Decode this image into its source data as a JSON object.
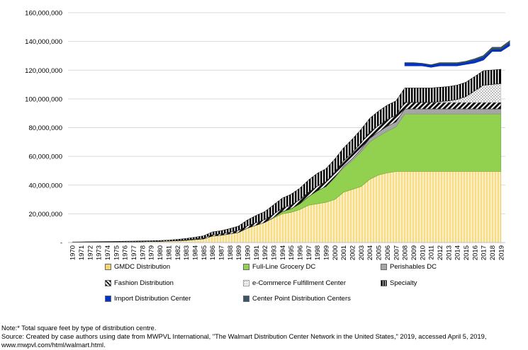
{
  "chart_data": {
    "type": "area",
    "stacked": true,
    "title": "",
    "xlabel": "",
    "ylabel": "",
    "ylim": [
      0,
      160000000
    ],
    "yticks": [
      0,
      20000000,
      40000000,
      60000000,
      80000000,
      100000000,
      120000000,
      140000000,
      160000000
    ],
    "ytick_labels": [
      "-",
      "20,000,000",
      "40,000,000",
      "60,000,000",
      "80,000,000",
      "100,000,000",
      "120,000,000",
      "140,000,000",
      "160,000,000"
    ],
    "grid": "horizontal",
    "legend_position": "bottom",
    "categories": [
      "1970",
      "1971",
      "1972",
      "1973",
      "1974",
      "1975",
      "1976",
      "1977",
      "1978",
      "1979",
      "1980",
      "1981",
      "1982",
      "1983",
      "1984",
      "1985",
      "1986",
      "1987",
      "1988",
      "1989",
      "1990",
      "1991",
      "1992",
      "1993",
      "1994",
      "1995",
      "1996",
      "1997",
      "1998",
      "1999",
      "2000",
      "2001",
      "2002",
      "2003",
      "2004",
      "2005",
      "2006",
      "2007",
      "2008",
      "2009",
      "2010",
      "2011",
      "2012",
      "2013",
      "2014",
      "2015",
      "2016",
      "2017",
      "2018",
      "2019"
    ],
    "series": [
      {
        "name": "GMDC Distribution",
        "color": "#f2d675",
        "values": [
          200000,
          250000,
          300000,
          350000,
          400000,
          450000,
          500000,
          550000,
          600000,
          700000,
          800000,
          1000000,
          1200000,
          1500000,
          2000000,
          2500000,
          4500000,
          5000000,
          6000000,
          7000000,
          10000000,
          12000000,
          14000000,
          17000000,
          20000000,
          21000000,
          23000000,
          26000000,
          27000000,
          28000000,
          30000000,
          35000000,
          37000000,
          39000000,
          44000000,
          47000000,
          48500000,
          49500000,
          49500000,
          49500000,
          49500000,
          49500000,
          49500000,
          49500000,
          49500000,
          49500000,
          49500000,
          49500000,
          49500000,
          49500000
        ]
      },
      {
        "name": "Full-Line Grocery DC",
        "color": "#92d050",
        "values": [
          0,
          0,
          0,
          0,
          0,
          0,
          0,
          0,
          0,
          0,
          0,
          0,
          0,
          0,
          0,
          0,
          0,
          0,
          0,
          0,
          0,
          0,
          0,
          500000,
          1500000,
          2500000,
          4000000,
          6000000,
          9000000,
          11000000,
          15000000,
          17000000,
          20000000,
          24000000,
          26000000,
          27000000,
          29000000,
          31000000,
          40000000,
          40000000,
          40000000,
          40000000,
          40000000,
          40000000,
          40000000,
          40000000,
          40000000,
          40000000,
          40000000,
          40000000
        ]
      },
      {
        "name": "Perishables DC",
        "color": "#a6a6a6",
        "values": [
          0,
          0,
          0,
          0,
          0,
          0,
          0,
          0,
          0,
          0,
          0,
          0,
          0,
          0,
          0,
          0,
          0,
          0,
          0,
          0,
          0,
          0,
          0,
          0,
          0,
          0,
          0,
          0,
          0,
          0,
          500000,
          1000000,
          1500000,
          2000000,
          2500000,
          3000000,
          3500000,
          3500000,
          3500000,
          3500000,
          3500000,
          3500000,
          3500000,
          3500000,
          3500000,
          3500000,
          3500000,
          3500000,
          3500000,
          3500000
        ]
      },
      {
        "name": "Fashion Distribution",
        "color": "#1f1f1f",
        "values": [
          0,
          0,
          0,
          0,
          0,
          0,
          0,
          0,
          0,
          0,
          0,
          0,
          200000,
          300000,
          500000,
          700000,
          900000,
          1000000,
          1200000,
          1400000,
          1600000,
          1800000,
          2000000,
          2200000,
          2400000,
          2600000,
          2800000,
          3000000,
          3200000,
          3400000,
          3600000,
          3800000,
          4000000,
          4200000,
          4400000,
          4500000,
          4600000,
          4600000,
          4600000,
          4600000,
          4600000,
          4600000,
          4600000,
          4600000,
          4600000,
          4600000,
          4600000,
          4600000,
          4600000,
          4600000
        ]
      },
      {
        "name": "e-Commerce Fulfillment Center",
        "color": "#d9d9d9",
        "values": [
          0,
          0,
          0,
          0,
          0,
          0,
          0,
          0,
          0,
          0,
          0,
          0,
          0,
          0,
          0,
          0,
          0,
          0,
          0,
          0,
          0,
          0,
          0,
          0,
          0,
          0,
          0,
          0,
          0,
          0,
          0,
          0,
          0,
          0,
          0,
          0,
          0,
          0,
          0,
          0,
          0,
          0,
          500000,
          1000000,
          2000000,
          4000000,
          8000000,
          12000000,
          12500000,
          13000000
        ]
      },
      {
        "name": "Specialty",
        "color": "#000000",
        "values": [
          200000,
          250000,
          300000,
          300000,
          300000,
          350000,
          400000,
          450000,
          500000,
          550000,
          600000,
          700000,
          800000,
          1000000,
          1200000,
          1500000,
          2000000,
          2200000,
          2500000,
          3000000,
          4000000,
          5000000,
          5500000,
          6500000,
          7000000,
          7500000,
          8000000,
          8500000,
          9000000,
          9000000,
          9000000,
          9000000,
          9500000,
          9500000,
          9500000,
          10000000,
          10000000,
          10000000,
          10000000,
          10000000,
          10000000,
          10000000,
          10000000,
          10000000,
          10000000,
          10000000,
          10000000,
          10000000,
          10000000,
          10000000
        ]
      },
      {
        "name": "Import Distribution Center",
        "color": "#0033cc",
        "values": [
          0,
          0,
          0,
          0,
          0,
          0,
          0,
          0,
          0,
          0,
          0,
          0,
          0,
          0,
          0,
          0,
          0,
          0,
          0,
          0,
          0,
          0,
          0,
          0,
          0,
          0,
          0,
          0,
          0,
          0,
          0,
          0,
          0,
          0,
          0,
          0,
          0,
          0,
          0,
          0,
          0,
          0,
          0,
          0,
          0,
          0,
          0,
          0,
          0,
          0
        ],
        "separate_band": {
          "start_index": 38,
          "base": [
            123000000,
            123000000,
            123000000,
            122000000,
            123000000,
            123000000,
            123000000,
            124000000,
            125000000,
            127000000,
            133000000,
            133000000,
            137000000
          ],
          "height": [
            2000000,
            2000000,
            1500000,
            1500000,
            1500000,
            1500000,
            1500000,
            1500000,
            2000000,
            2000000,
            1500000,
            1500000,
            2000000
          ]
        }
      },
      {
        "name": "Center Point Distribution Centers",
        "color": "#3a5565",
        "values": [
          0,
          0,
          0,
          0,
          0,
          0,
          0,
          0,
          0,
          0,
          0,
          0,
          0,
          0,
          0,
          0,
          0,
          0,
          0,
          0,
          0,
          0,
          0,
          0,
          0,
          0,
          0,
          0,
          0,
          0,
          0,
          0,
          0,
          0,
          0,
          0,
          0,
          0,
          0,
          0,
          0,
          0,
          0,
          0,
          0,
          0,
          0,
          0,
          0,
          0
        ],
        "separate_band": {
          "start_index": 38,
          "base": [
            125000000,
            125000000,
            124500000,
            123500000,
            124500000,
            124500000,
            124500000,
            125500000,
            127000000,
            129000000,
            134500000,
            134500000,
            139000000
          ],
          "height": [
            300000,
            300000,
            300000,
            300000,
            800000,
            800000,
            800000,
            800000,
            1000000,
            1200000,
            1500000,
            1500000,
            1500000
          ]
        }
      }
    ]
  },
  "legend": {
    "items": [
      {
        "label": "GMDC Distribution",
        "swatch": "gmdc"
      },
      {
        "label": "Full-Line Grocery DC",
        "swatch": "grocery"
      },
      {
        "label": "Perishables DC",
        "swatch": "perish"
      },
      {
        "label": "Fashion Distribution",
        "swatch": "fashion"
      },
      {
        "label": "e-Commerce Fulfillment Center",
        "swatch": "ecom"
      },
      {
        "label": "Specialty",
        "swatch": "specialty"
      },
      {
        "label": "Import Distribution Center",
        "swatch": "import"
      },
      {
        "label": "Center Point Distribution Centers",
        "swatch": "center"
      }
    ]
  },
  "notes": {
    "line1": "Note:* Total square feet by type of distribution centre.",
    "line2": "Source: Created by case authors using date from MWPVL International, \"The Walmart Distribution Center Network in the United States,\" 2019, accessed April 5, 2019,",
    "line3": "www.mwpvl.com/html/walmart.html."
  }
}
